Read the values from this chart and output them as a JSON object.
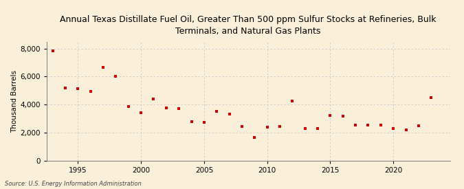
{
  "title": "Annual Texas Distillate Fuel Oil, Greater Than 500 ppm Sulfur Stocks at Refineries, Bulk\nTerminals, and Natural Gas Plants",
  "ylabel": "Thousand Barrels",
  "source": "Source: U.S. Energy Information Administration",
  "background_color": "#faefd9",
  "plot_background_color": "#faefd9",
  "marker_color": "#cc0000",
  "years": [
    1993,
    1994,
    1995,
    1996,
    1997,
    1998,
    1999,
    2000,
    2001,
    2002,
    2003,
    2004,
    2005,
    2006,
    2007,
    2008,
    2009,
    2010,
    2011,
    2012,
    2013,
    2014,
    2015,
    2016,
    2017,
    2018,
    2019,
    2020,
    2021,
    2022,
    2023
  ],
  "values": [
    7850,
    5200,
    5150,
    4950,
    6680,
    6020,
    3870,
    3430,
    4380,
    3750,
    3720,
    2780,
    2740,
    3500,
    3340,
    2420,
    1660,
    2400,
    2430,
    4240,
    2310,
    2290,
    3220,
    3200,
    2520,
    2520,
    2540,
    2310,
    2200,
    2500,
    4500
  ],
  "ylim": [
    0,
    8500
  ],
  "yticks": [
    0,
    2000,
    4000,
    6000,
    8000
  ],
  "xlim": [
    1992.5,
    2024.5
  ],
  "xticks": [
    1995,
    2000,
    2005,
    2010,
    2015,
    2020
  ],
  "grid_color": "#c8c8c8",
  "title_fontsize": 9.0,
  "axis_fontsize": 7.5,
  "tick_fontsize": 7.5
}
